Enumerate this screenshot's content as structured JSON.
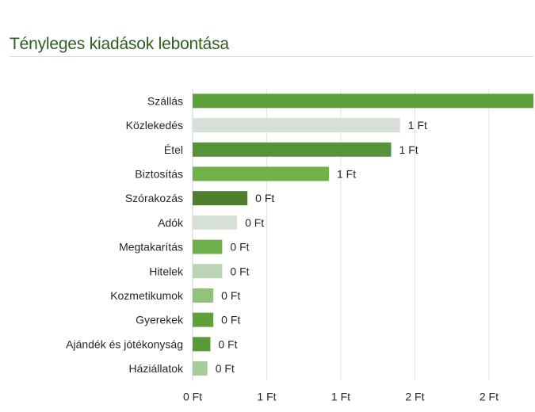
{
  "title": "Tényleges kiadások lebontása",
  "chart_data": {
    "type": "bar",
    "orientation": "horizontal",
    "title": "Tényleges kiadások lebontása",
    "categories": [
      "Szállás",
      "Közlekedés",
      "Étel",
      "Biztosítás",
      "Szórakozás",
      "Adók",
      "Megtakarítás",
      "Hitelek",
      "Kozmetikumok",
      "Gyerekek",
      "Ajándék és jótékonyság",
      "Háziállatok"
    ],
    "values": [
      2.32,
      1.4,
      1.34,
      0.92,
      0.37,
      0.3,
      0.2,
      0.2,
      0.14,
      0.14,
      0.12,
      0.1
    ],
    "value_labels": [
      "",
      "1 Ft",
      "1 Ft",
      "1 Ft",
      "0 Ft",
      "0 Ft",
      "0 Ft",
      "0 Ft",
      "0 Ft",
      "0 Ft",
      "0 Ft",
      "0 Ft"
    ],
    "bar_colors": [
      "#5ea03a",
      "#d6e0d6",
      "#56923a",
      "#6fb24a",
      "#4f7f2d",
      "#d6e0d6",
      "#70b04c",
      "#bcd3b8",
      "#92c37c",
      "#5ea03a",
      "#5a9a36",
      "#a8cc98"
    ],
    "xaxis": {
      "ticks": [
        0,
        0.5,
        1.0,
        1.5,
        2.0
      ],
      "tick_labels": [
        "0 Ft",
        "1 Ft",
        "1 Ft",
        "2 Ft",
        "2 Ft"
      ],
      "xlim": [
        0,
        2.3
      ]
    },
    "xlabel": "",
    "ylabel": "",
    "grid": true,
    "legend": "none"
  }
}
